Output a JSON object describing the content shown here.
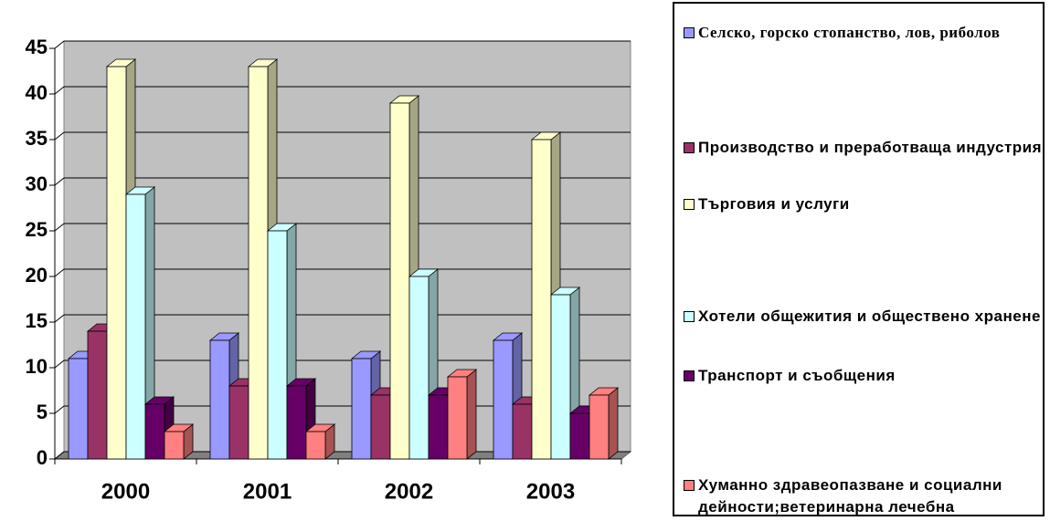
{
  "chart_data": {
    "type": "bar3d",
    "categories": [
      "2000",
      "2001",
      "2002",
      "2003"
    ],
    "series": [
      {
        "name": "Селско, горско стопанство, лов, риболов",
        "color": "#9999ff",
        "values": [
          11,
          13,
          11,
          13
        ]
      },
      {
        "name": "Производство и преработваща индустрия",
        "color": "#993366",
        "values": [
          14,
          8,
          7,
          6
        ]
      },
      {
        "name": "Търговия и услуги",
        "color": "#ffffcc",
        "values": [
          43,
          43,
          39,
          35
        ]
      },
      {
        "name": "Хотели общежития и обществено хранене",
        "color": "#ccffff",
        "values": [
          29,
          25,
          20,
          18
        ]
      },
      {
        "name": "Транспорт и съобщения",
        "color": "#660066",
        "values": [
          6,
          8,
          7,
          5
        ]
      },
      {
        "name": "Хуманно здравеопазване и социални дейности;ветеринарна лечебна",
        "color": "#ff8080",
        "values": [
          3,
          3,
          9,
          7
        ]
      }
    ],
    "ylim": [
      0,
      45
    ],
    "yticks": [
      0,
      5,
      10,
      15,
      20,
      25,
      30,
      35,
      40,
      45
    ],
    "grid": true,
    "legend": "right"
  }
}
